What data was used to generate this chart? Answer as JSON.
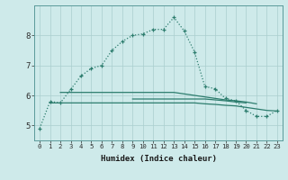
{
  "xlabel": "Humidex (Indice chaleur)",
  "x_values": [
    0,
    1,
    2,
    3,
    4,
    5,
    6,
    7,
    8,
    9,
    10,
    11,
    12,
    13,
    14,
    15,
    16,
    17,
    18,
    19,
    20,
    21,
    22,
    23
  ],
  "line1": [
    4.9,
    5.8,
    5.75,
    6.2,
    6.65,
    6.9,
    7.0,
    7.5,
    7.8,
    8.0,
    8.05,
    8.2,
    8.2,
    8.6,
    8.15,
    7.45,
    6.3,
    6.22,
    5.9,
    5.82,
    5.5,
    5.3,
    5.3,
    5.5
  ],
  "line2_x": [
    1,
    2,
    3,
    4,
    5,
    6,
    7,
    8,
    9,
    10,
    11,
    12,
    13,
    14,
    15,
    16,
    17,
    18,
    19,
    20,
    21,
    22,
    23
  ],
  "line2_y": [
    5.75,
    5.75,
    5.75,
    5.75,
    5.75,
    5.75,
    5.75,
    5.75,
    5.75,
    5.75,
    5.75,
    5.75,
    5.75,
    5.75,
    5.75,
    5.72,
    5.7,
    5.67,
    5.65,
    5.6,
    5.55,
    5.5,
    5.48
  ],
  "line3_x": [
    2,
    3,
    4,
    5,
    6,
    7,
    8,
    9,
    10,
    11,
    12,
    13,
    14,
    15,
    16,
    17,
    18,
    19,
    20,
    21
  ],
  "line3_y": [
    6.1,
    6.1,
    6.1,
    6.1,
    6.1,
    6.1,
    6.1,
    6.1,
    6.1,
    6.1,
    6.1,
    6.1,
    6.05,
    6.0,
    5.95,
    5.9,
    5.85,
    5.82,
    5.78,
    5.72
  ],
  "line4_x": [
    9,
    10,
    11,
    12,
    13,
    14,
    15,
    16,
    17,
    18,
    19,
    20
  ],
  "line4_y": [
    5.88,
    5.88,
    5.88,
    5.88,
    5.88,
    5.88,
    5.88,
    5.88,
    5.85,
    5.82,
    5.78,
    5.75
  ],
  "line_color": "#2d7d6e",
  "bg_color": "#ceeaea",
  "grid_color": "#aacece",
  "ylim": [
    4.5,
    9.0
  ],
  "yticks": [
    5,
    6,
    7,
    8
  ],
  "xticks": [
    0,
    1,
    2,
    3,
    4,
    5,
    6,
    7,
    8,
    9,
    10,
    11,
    12,
    13,
    14,
    15,
    16,
    17,
    18,
    19,
    20,
    21,
    22,
    23
  ],
  "marker": "+",
  "markersize": 3.5,
  "linewidth": 0.9
}
